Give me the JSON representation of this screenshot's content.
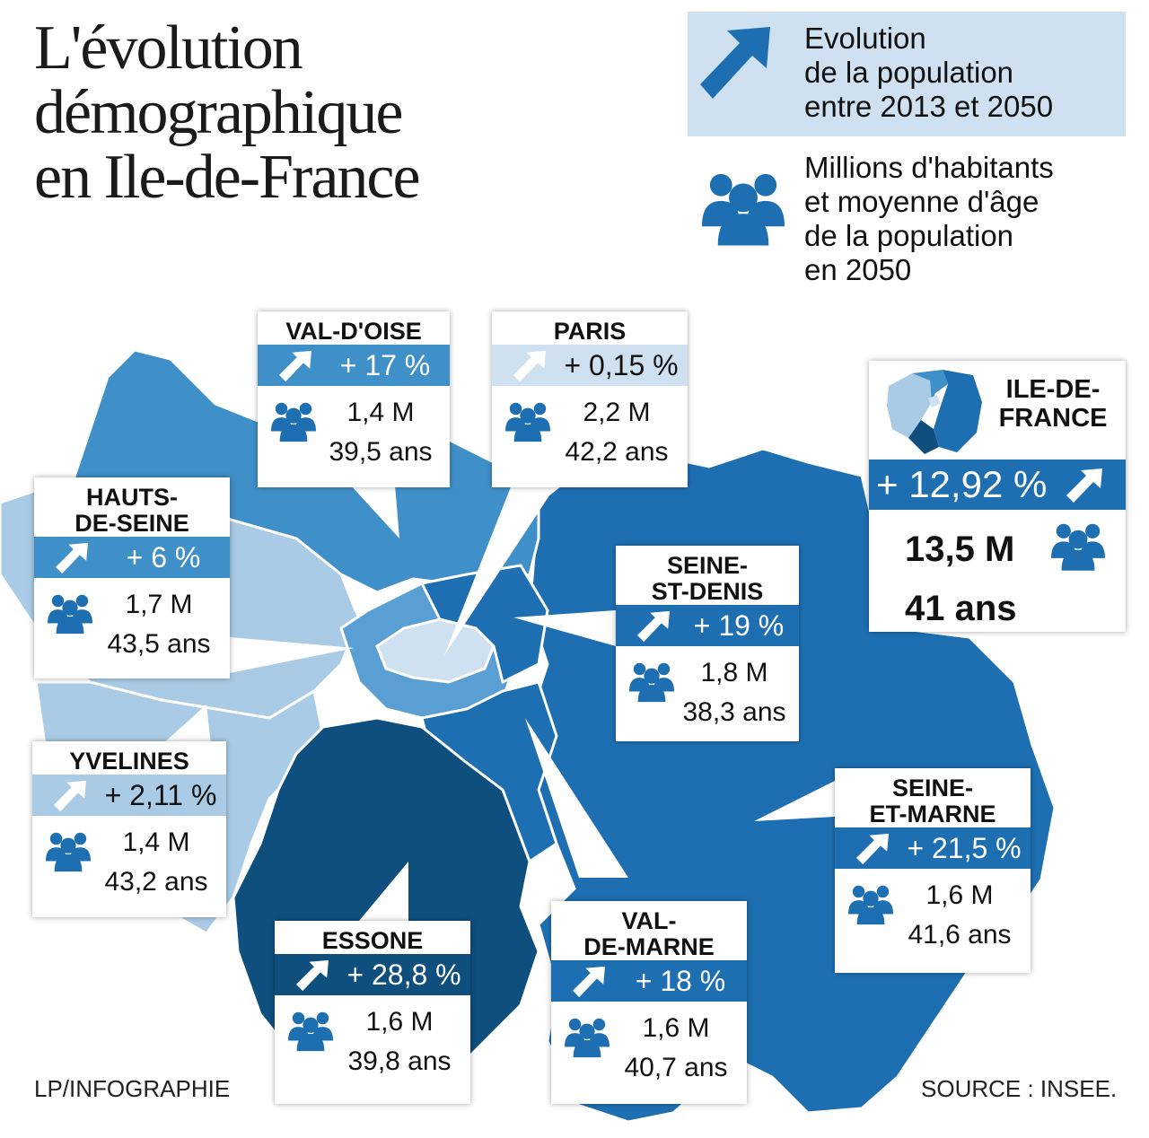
{
  "title": [
    "L'évolution",
    "démographique",
    "en Ile-de-France"
  ],
  "legend": {
    "evolution": [
      "Evolution",
      "de la population",
      "entre 2013 et 2050"
    ],
    "population": [
      "Millions d'habitants",
      "et moyenne d'âge",
      "de la population",
      "en 2050"
    ],
    "arrow_icon": "arrow-up-right-icon",
    "people_icon": "people-group-icon"
  },
  "colors": {
    "dark_navy": "#0e4f7e",
    "blue": "#1e6fb2",
    "mid_blue": "#3f8fc9",
    "light_blue": "#a9cbe6",
    "pale_blue": "#cfe1f0"
  },
  "departments": [
    {
      "id": "val-d-oise",
      "name": [
        "VAL-D'OISE"
      ],
      "change": "+ 17 %",
      "population": "1,4 M",
      "age": "39,5 ans",
      "tone": "mid"
    },
    {
      "id": "paris",
      "name": [
        "PARIS"
      ],
      "change": "+ 0,15 %",
      "population": "2,2 M",
      "age": "42,2 ans",
      "tone": "pale"
    },
    {
      "id": "hauts-de-seine",
      "name": [
        "HAUTS-",
        "DE-SEINE"
      ],
      "change": "+ 6 %",
      "population": "1,7 M",
      "age": "43,5 ans",
      "tone": "mid"
    },
    {
      "id": "seine-st-denis",
      "name": [
        "SEINE-",
        "ST-DENIS"
      ],
      "change": "+ 19 %",
      "population": "1,8 M",
      "age": "38,3 ans",
      "tone": "blue"
    },
    {
      "id": "yvelines",
      "name": [
        "YVELINES"
      ],
      "change": "+ 2,11 %",
      "population": "1,4 M",
      "age": "43,2 ans",
      "tone": "light"
    },
    {
      "id": "seine-et-marne",
      "name": [
        "SEINE-",
        "ET-MARNE"
      ],
      "change": "+ 21,5 %",
      "population": "1,6 M",
      "age": "41,6 ans",
      "tone": "blue"
    },
    {
      "id": "essone",
      "name": [
        "ESSONE"
      ],
      "change": "+ 28,8 %",
      "population": "1,6 M",
      "age": "39,8 ans",
      "tone": "navy"
    },
    {
      "id": "val-de-marne",
      "name": [
        "VAL-",
        "DE-MARNE"
      ],
      "change": "+ 18 %",
      "population": "1,6 M",
      "age": "40,7 ans",
      "tone": "blue"
    }
  ],
  "region": {
    "name": [
      "ILE-DE-",
      "FRANCE"
    ],
    "change": "+ 12,92 %",
    "population": "13,5 M",
    "age": "41 ans"
  },
  "footer": {
    "credit": "LP/INFOGRAPHIE",
    "source": "SOURCE : INSEE."
  }
}
